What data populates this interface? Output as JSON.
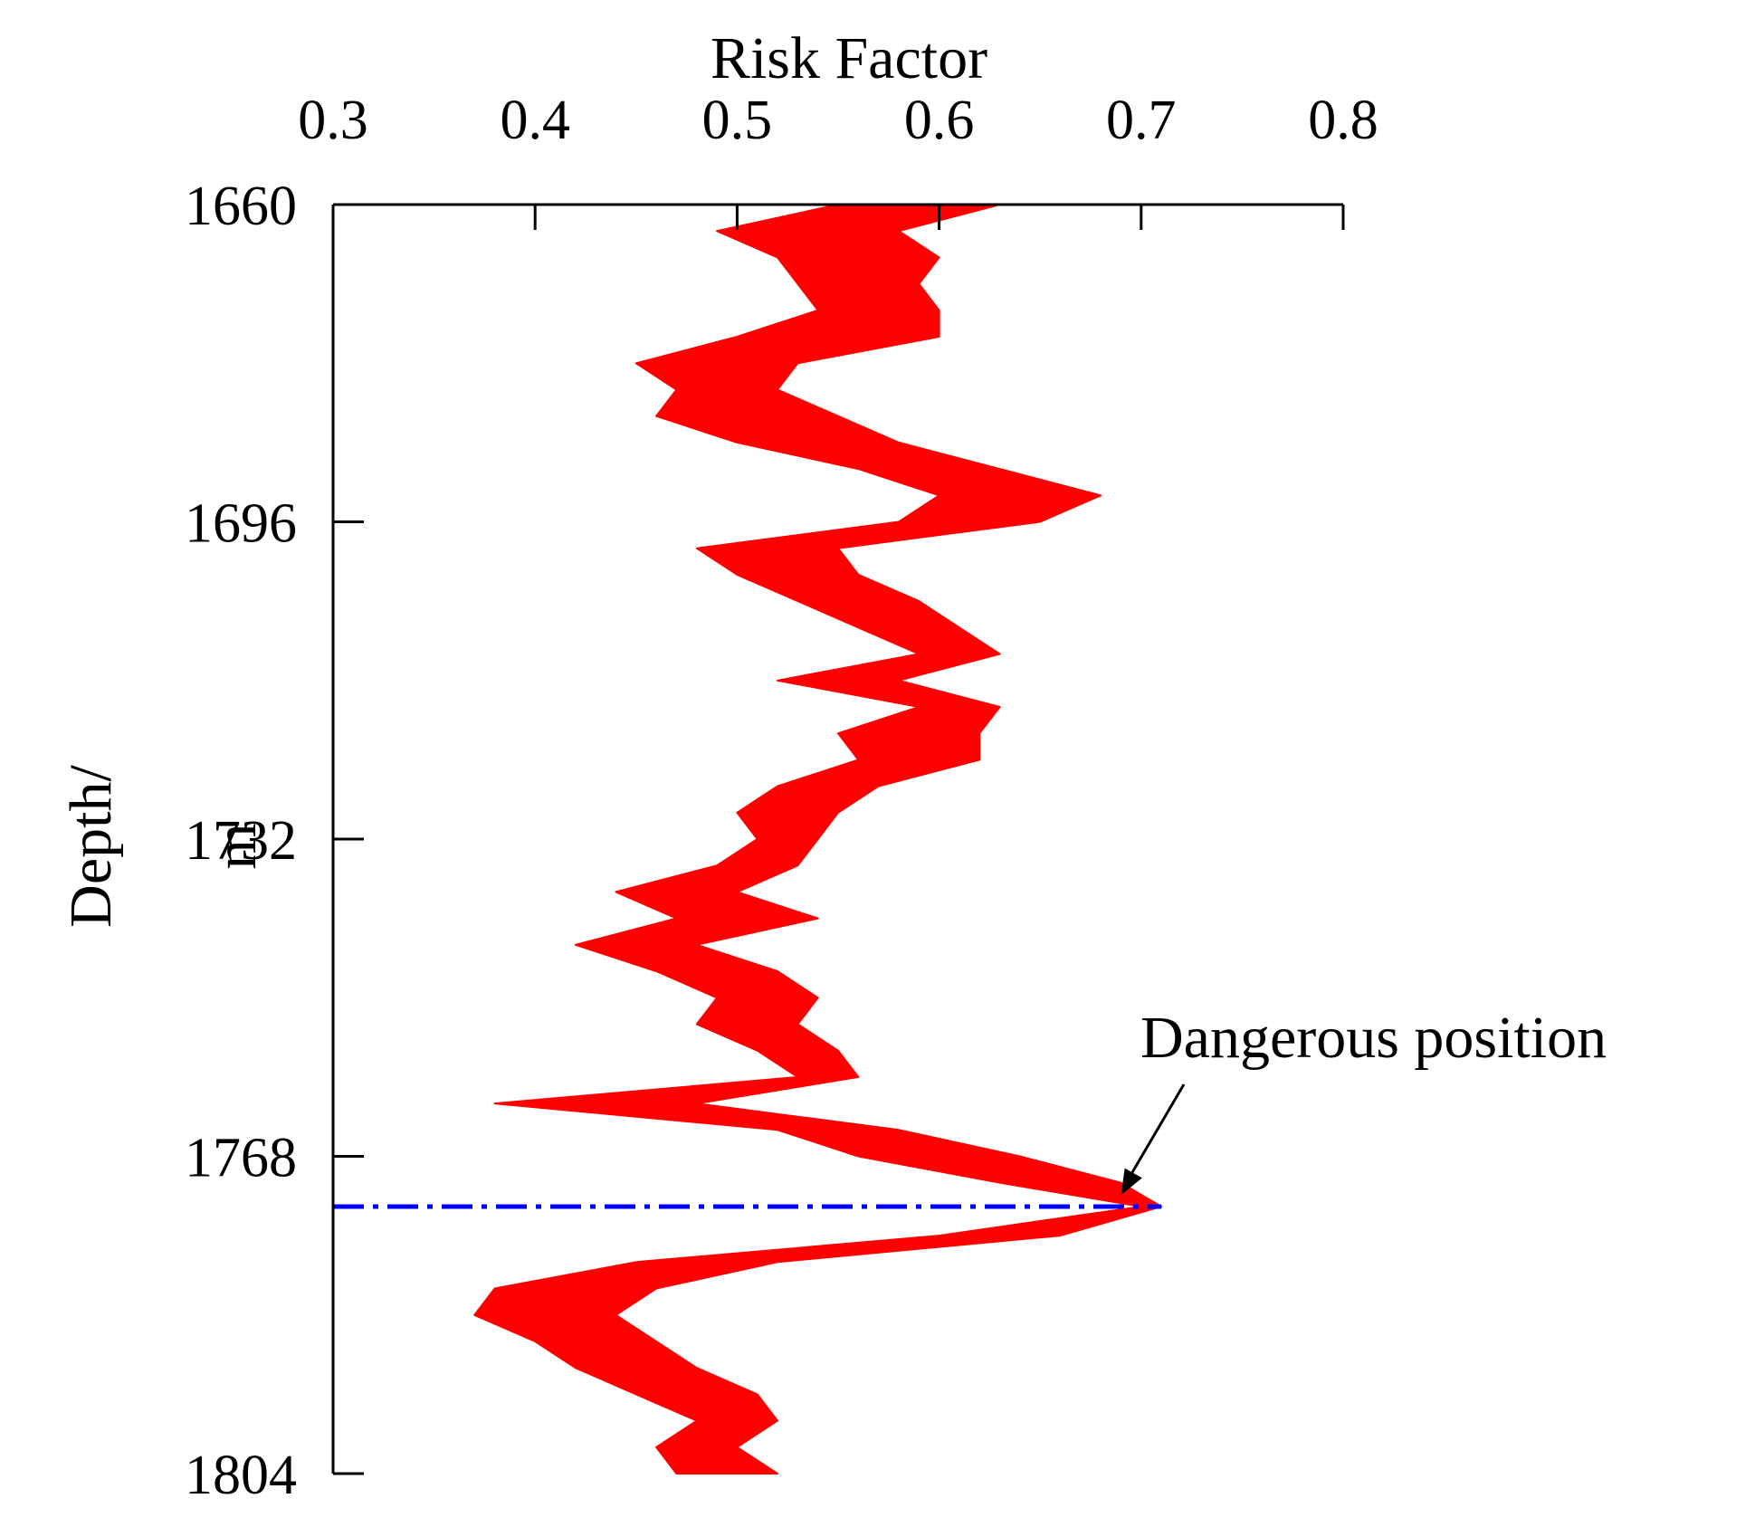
{
  "chart_data": {
    "type": "area",
    "title": "",
    "xlabel": "Risk Factor",
    "ylabel_line1": "Depth/",
    "ylabel_line2": "m",
    "x_axis_position": "top",
    "y_axis_inverted": true,
    "xlim": [
      0.3,
      0.8
    ],
    "ylim": [
      1660,
      1804
    ],
    "x_ticks": [
      0.3,
      0.4,
      0.5,
      0.6,
      0.7,
      0.8
    ],
    "x_tick_labels": [
      "0.3",
      "0.4",
      "0.5",
      "0.6",
      "0.7",
      "0.8"
    ],
    "y_ticks": [
      1660,
      1696,
      1732,
      1768,
      1804
    ],
    "y_tick_labels": [
      "1660",
      "1696",
      "1732",
      "1768",
      "1804"
    ],
    "grid": false,
    "legend": "none",
    "band_color": "#ff0000",
    "band": {
      "depth": [
        1660,
        1663,
        1666,
        1669,
        1672,
        1675,
        1678,
        1681,
        1684,
        1687,
        1690,
        1693,
        1696,
        1699,
        1702,
        1705,
        1708,
        1711,
        1714,
        1717,
        1720,
        1723,
        1726,
        1729,
        1732,
        1735,
        1738,
        1741,
        1744,
        1747,
        1750,
        1753,
        1756,
        1759,
        1762,
        1765,
        1768,
        1771,
        1773.7,
        1777,
        1780,
        1783,
        1786,
        1789,
        1792,
        1795,
        1798,
        1801,
        1804
      ],
      "left": [
        0.55,
        0.49,
        0.52,
        0.53,
        0.54,
        0.5,
        0.45,
        0.47,
        0.46,
        0.5,
        0.56,
        0.6,
        0.58,
        0.48,
        0.5,
        0.53,
        0.56,
        0.59,
        0.52,
        0.59,
        0.55,
        0.56,
        0.52,
        0.5,
        0.51,
        0.49,
        0.44,
        0.47,
        0.42,
        0.46,
        0.49,
        0.48,
        0.51,
        0.53,
        0.38,
        0.52,
        0.56,
        0.63,
        0.7,
        0.6,
        0.45,
        0.38,
        0.37,
        0.4,
        0.42,
        0.45,
        0.48,
        0.46,
        0.47
      ],
      "right": [
        0.63,
        0.58,
        0.6,
        0.59,
        0.6,
        0.6,
        0.53,
        0.52,
        0.55,
        0.58,
        0.63,
        0.68,
        0.65,
        0.55,
        0.56,
        0.59,
        0.61,
        0.63,
        0.58,
        0.63,
        0.62,
        0.62,
        0.57,
        0.55,
        0.54,
        0.53,
        0.5,
        0.54,
        0.48,
        0.52,
        0.54,
        0.53,
        0.55,
        0.56,
        0.48,
        0.58,
        0.64,
        0.69,
        0.71,
        0.66,
        0.52,
        0.46,
        0.44,
        0.46,
        0.48,
        0.51,
        0.52,
        0.5,
        0.52
      ]
    },
    "danger_line": {
      "depth": 1773.7,
      "from_x": 0.3,
      "to_x": 0.71,
      "color": "#0000ff",
      "style": "dash-dot"
    },
    "annotation": {
      "text": "Dangerous position",
      "target_x": 0.69,
      "target_y": 1772.4
    }
  }
}
